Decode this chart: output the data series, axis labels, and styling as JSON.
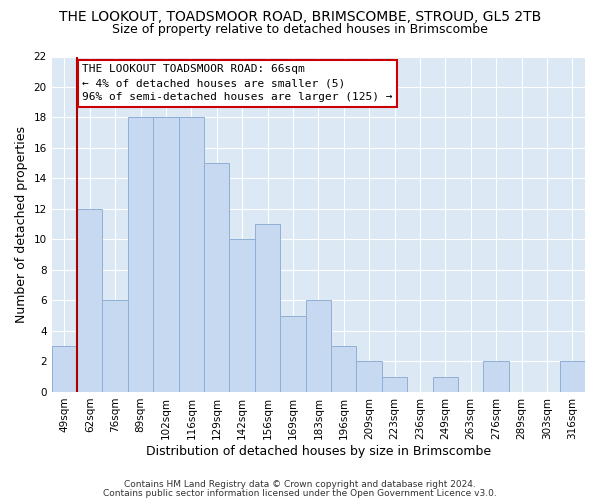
{
  "title": "THE LOOKOUT, TOADSMOOR ROAD, BRIMSCOMBE, STROUD, GL5 2TB",
  "subtitle": "Size of property relative to detached houses in Brimscombe",
  "xlabel": "Distribution of detached houses by size in Brimscombe",
  "ylabel": "Number of detached properties",
  "bar_labels": [
    "49sqm",
    "62sqm",
    "76sqm",
    "89sqm",
    "102sqm",
    "116sqm",
    "129sqm",
    "142sqm",
    "156sqm",
    "169sqm",
    "183sqm",
    "196sqm",
    "209sqm",
    "223sqm",
    "236sqm",
    "249sqm",
    "263sqm",
    "276sqm",
    "289sqm",
    "303sqm",
    "316sqm"
  ],
  "bar_values": [
    3,
    12,
    6,
    18,
    18,
    18,
    15,
    10,
    11,
    5,
    6,
    3,
    2,
    1,
    0,
    1,
    0,
    2,
    0,
    0,
    2
  ],
  "bar_color": "#c6d9f0",
  "bar_edge_color": "#8fafd4",
  "ylim": [
    0,
    22
  ],
  "yticks": [
    0,
    2,
    4,
    6,
    8,
    10,
    12,
    14,
    16,
    18,
    20,
    22
  ],
  "annotation_title": "THE LOOKOUT TOADSMOOR ROAD: 66sqm",
  "annotation_line1": "← 4% of detached houses are smaller (5)",
  "annotation_line2": "96% of semi-detached houses are larger (125) →",
  "annotation_box_color": "#ffffff",
  "annotation_box_edge": "#cc0000",
  "red_line_color": "#aa0000",
  "footnote1": "Contains HM Land Registry data © Crown copyright and database right 2024.",
  "footnote2": "Contains public sector information licensed under the Open Government Licence v3.0.",
  "title_fontsize": 10,
  "subtitle_fontsize": 9,
  "axis_label_fontsize": 9,
  "tick_fontsize": 7.5,
  "annotation_fontsize": 8,
  "footnote_fontsize": 6.5,
  "bg_color": "#dce9f5"
}
